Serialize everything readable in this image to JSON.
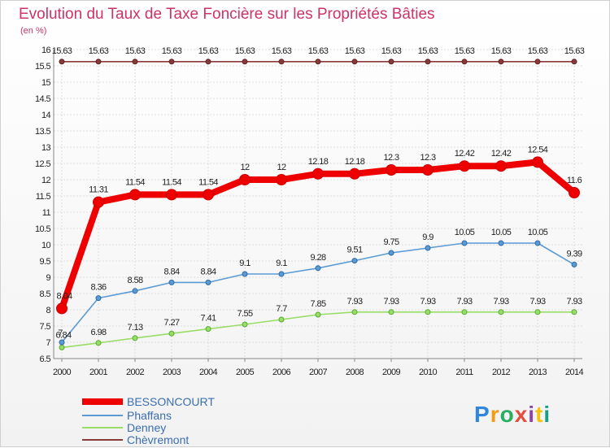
{
  "chart_data": {
    "type": "line",
    "title": "Evolution du Taux de Taxe Foncière sur les Propriétés Bâties",
    "subtitle": "(en %)",
    "x": [
      "2000",
      "2001",
      "2002",
      "2003",
      "2004",
      "2005",
      "2006",
      "2007",
      "2008",
      "2009",
      "2010",
      "2011",
      "2012",
      "2013",
      "2014"
    ],
    "ylim": [
      6.5,
      16
    ],
    "yticks": [
      6.5,
      7,
      7.5,
      8,
      8.5,
      9,
      9.5,
      10,
      10.5,
      11,
      11.5,
      12,
      12.5,
      13,
      13.5,
      14,
      14.5,
      15,
      15.5,
      16
    ],
    "grid": true,
    "legend_position": "bottom-left",
    "series": [
      {
        "name": "BESSONCOURT",
        "color": "#ee0000",
        "values": [
          8.04,
          11.31,
          11.54,
          11.54,
          11.54,
          12,
          12,
          12.18,
          12.18,
          12.3,
          12.3,
          12.42,
          12.42,
          12.54,
          11.6
        ],
        "labels": [
          "8.04",
          "11.31",
          "11.54",
          "11.54",
          "11.54",
          "12",
          "12",
          "12.18",
          "12.18",
          "12.3",
          "12.3",
          "12.42",
          "12.42",
          "12.54",
          "11.6"
        ]
      },
      {
        "name": "Phaffans",
        "color": "#5b9bd5",
        "values": [
          7,
          8.36,
          8.58,
          8.84,
          8.84,
          9.1,
          9.1,
          9.28,
          9.51,
          9.75,
          9.9,
          10.05,
          10.05,
          10.05,
          9.39
        ],
        "labels": [
          "7",
          "8.36",
          "8.58",
          "8.84",
          "8.84",
          "9.1",
          "9.1",
          "9.28",
          "9.51",
          "9.75",
          "9.9",
          "10.05",
          "10.05",
          "10.05",
          "9.39"
        ]
      },
      {
        "name": "Denney",
        "color": "#99dd66",
        "values": [
          6.84,
          6.98,
          7.13,
          7.27,
          7.41,
          7.55,
          7.7,
          7.85,
          7.93,
          7.93,
          7.93,
          7.93,
          7.93,
          7.93,
          7.93
        ],
        "labels": [
          "6.84",
          "6.98",
          "7.13",
          "7.27",
          "7.41",
          "7.55",
          "7.7",
          "7.85",
          "7.93",
          "7.93",
          "7.93",
          "7.93",
          "7.93",
          "7.93",
          "7.93"
        ]
      },
      {
        "name": "Chèvremont",
        "color": "#8b3a3a",
        "values": [
          15.63,
          15.63,
          15.63,
          15.63,
          15.63,
          15.63,
          15.63,
          15.63,
          15.63,
          15.63,
          15.63,
          15.63,
          15.63,
          15.63,
          15.63
        ],
        "labels": [
          "15.63",
          "15.63",
          "15.63",
          "15.63",
          "15.63",
          "15.63",
          "15.63",
          "15.63",
          "15.63",
          "15.63",
          "15.63",
          "15.63",
          "15.63",
          "15.63",
          "15.63"
        ]
      }
    ]
  },
  "logo": {
    "text": "Proxiti",
    "letter_colors": [
      "#2e86de",
      "#f39c12",
      "#27ae60",
      "#e74c3c",
      "#8e44ad",
      "#f1c40f",
      "#16a085"
    ]
  }
}
